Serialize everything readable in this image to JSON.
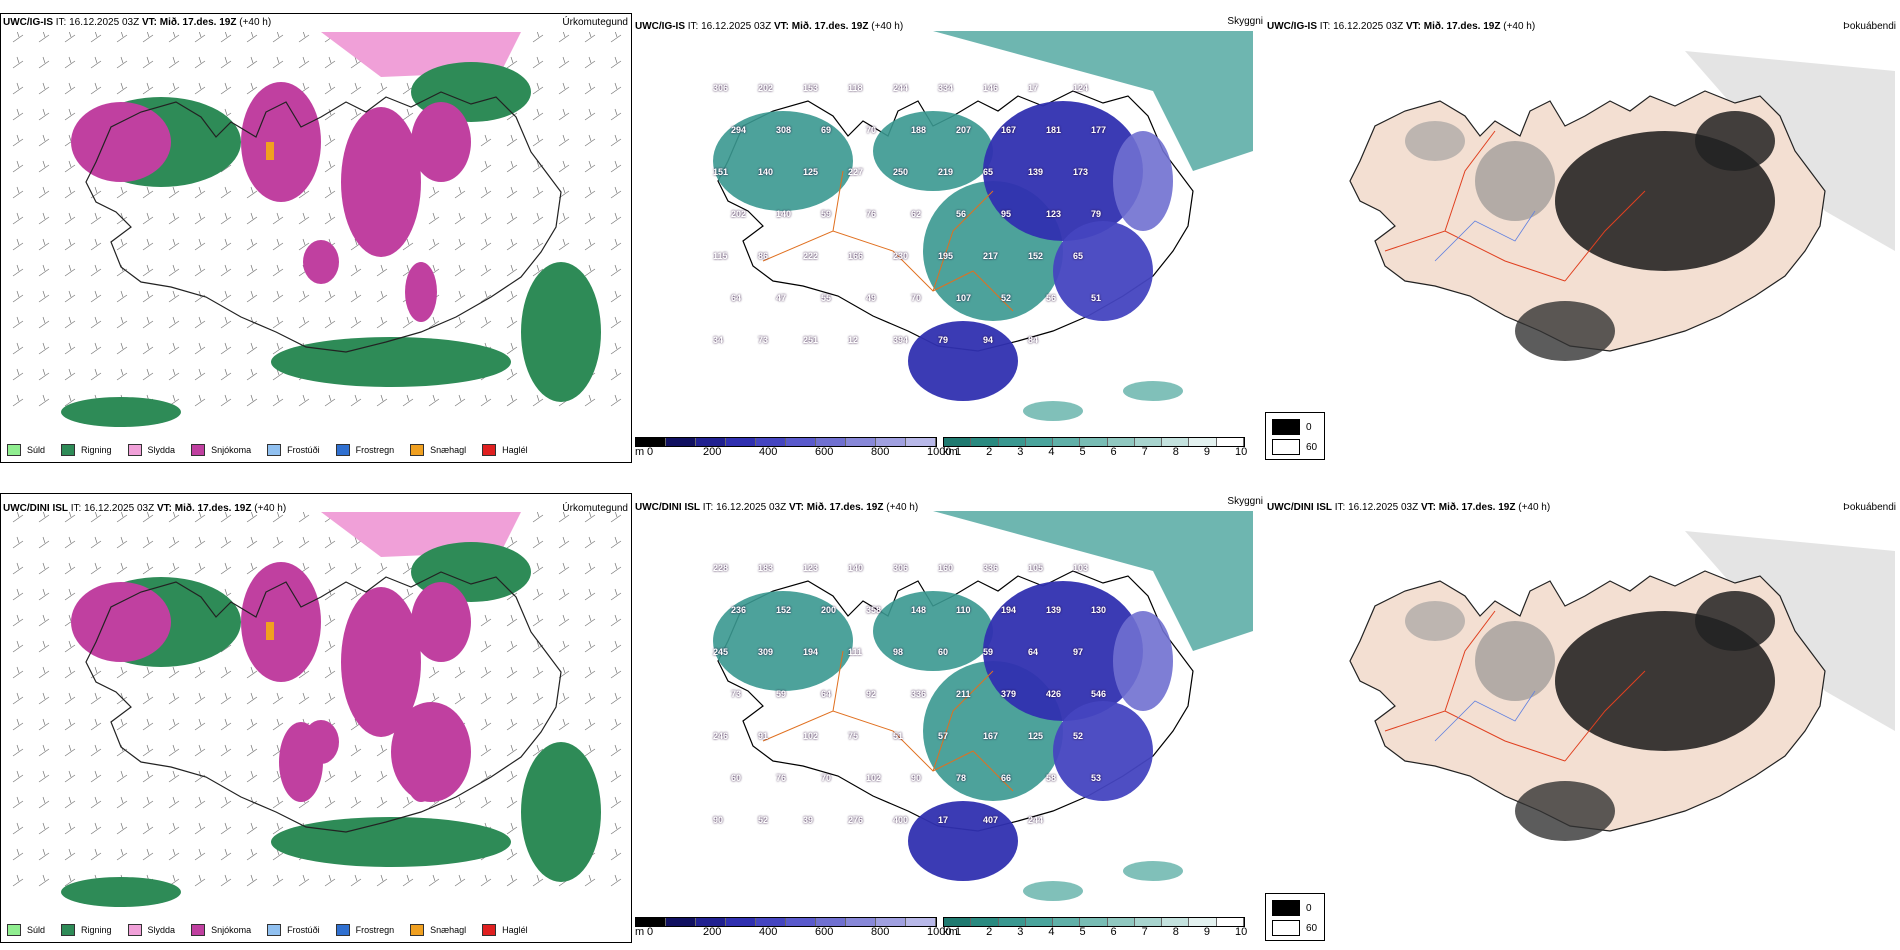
{
  "rows": [
    {
      "model": "UWC/IG-IS",
      "precip_title": {
        "model": "UWC/IG-IS",
        "it": "IT: 16.12.2025 03Z",
        "vt_label": "VT:",
        "vt_value": "Mið. 17.des. 19Z",
        "lead": "(+40 h)",
        "right": "Úrkomutegund"
      },
      "cloud_title": {
        "model": "UWC/IG-IS",
        "it": "IT: 16.12.2025 03Z",
        "vt_label": "VT:",
        "vt_value": "Mið. 17.des. 19Z",
        "lead": "(+40 h)",
        "right": "Skyggni"
      },
      "fog_title": {
        "model": "UWC/IG-IS",
        "it": "IT: 16.12.2025 03Z",
        "vt_label": "VT:",
        "vt_value": "Mið. 17.des. 19Z",
        "lead": "(+40 h)",
        "right": "Þokuábendi"
      },
      "cloud_labels": [
        "306",
        "202",
        "153",
        "118",
        "244",
        "334",
        "146",
        "17",
        "124",
        "294",
        "308",
        "69",
        "70",
        "188",
        "207",
        "167",
        "181",
        "177",
        "151",
        "140",
        "125",
        "227",
        "250",
        "219",
        "65",
        "139",
        "173",
        "202",
        "140",
        "59",
        "76",
        "62",
        "56",
        "95",
        "123",
        "79",
        "115",
        "86",
        "222",
        "166",
        "230",
        "195",
        "217",
        "152",
        "65",
        "64",
        "47",
        "55",
        "49",
        "70",
        "107",
        "52",
        "56",
        "51",
        "34",
        "73",
        "251",
        "12",
        "394",
        "79",
        "94",
        "84"
      ]
    },
    {
      "model": "UWC/DINI ISL",
      "precip_title": {
        "model": "UWC/DINI ISL",
        "it": "IT: 16.12.2025 03Z",
        "vt_label": "VT:",
        "vt_value": "Mið. 17.des. 19Z",
        "lead": "(+40 h)",
        "right": "Úrkomutegund"
      },
      "cloud_title": {
        "model": "UWC/DINI ISL",
        "it": "IT: 16.12.2025 03Z",
        "vt_label": "VT:",
        "vt_value": "Mið. 17.des. 19Z",
        "lead": "(+40 h)",
        "right": "Skyggni"
      },
      "fog_title": {
        "model": "UWC/DINI ISL",
        "it": "IT: 16.12.2025 03Z",
        "vt_label": "VT:",
        "vt_value": "Mið. 17.des. 19Z",
        "lead": "(+40 h)",
        "right": "Þokuábendi"
      },
      "cloud_labels": [
        "228",
        "183",
        "123",
        "140",
        "306",
        "160",
        "336",
        "105",
        "103",
        "236",
        "152",
        "200",
        "358",
        "148",
        "110",
        "194",
        "139",
        "130",
        "245",
        "309",
        "194",
        "111",
        "98",
        "60",
        "59",
        "64",
        "97",
        "73",
        "59",
        "64",
        "92",
        "336",
        "211",
        "379",
        "426",
        "546",
        "246",
        "91",
        "102",
        "75",
        "51",
        "57",
        "167",
        "125",
        "52",
        "60",
        "76",
        "70",
        "102",
        "90",
        "78",
        "66",
        "58",
        "53",
        "90",
        "52",
        "39",
        "276",
        "400",
        "17",
        "407",
        "244"
      ]
    }
  ],
  "precip_legend": [
    {
      "label": "Súld",
      "color": "#90ee90"
    },
    {
      "label": "Rigning",
      "color": "#2e8b57"
    },
    {
      "label": "Slydda",
      "color": "#f0a0d8"
    },
    {
      "label": "Snjókoma",
      "color": "#c040a0"
    },
    {
      "label": "Frostúði",
      "color": "#90c0f0"
    },
    {
      "label": "Frostregn",
      "color": "#3070d0"
    },
    {
      "label": "Snæhagl",
      "color": "#f0a020"
    },
    {
      "label": "Haglél",
      "color": "#e02020"
    }
  ],
  "ceiling_bar": {
    "unit": "m",
    "ticks": [
      "0",
      "200",
      "400",
      "600",
      "800",
      "1000"
    ],
    "colors": [
      "#000000",
      "#101060",
      "#202090",
      "#3030b0",
      "#4545c0",
      "#5a5acc",
      "#7070d0",
      "#8888d8",
      "#a0a0e0",
      "#b8b8e8"
    ]
  },
  "visibility_bar": {
    "unit": "km",
    "ticks": [
      "1",
      "2",
      "3",
      "4",
      "5",
      "6",
      "7",
      "8",
      "9",
      "10"
    ],
    "colors": [
      "#1f7a70",
      "#2a8a80",
      "#3a9890",
      "#4aa49c",
      "#60b0a8",
      "#78bcb4",
      "#90c8c0",
      "#a8d4ce",
      "#c4e2de",
      "#e4f2f0",
      "#ffffff"
    ]
  },
  "fog_legend": [
    {
      "label": "0",
      "color": "#000000"
    },
    {
      "label": "60",
      "color": "#ffffff"
    }
  ]
}
